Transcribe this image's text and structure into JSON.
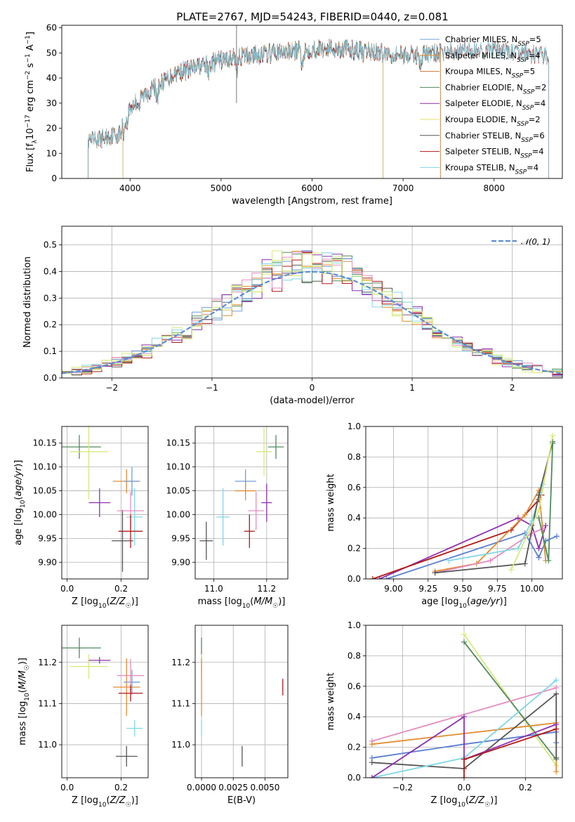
{
  "figure": {
    "title": "PLATE=2767, MJD=54243, FIBERID=0440, z=0.081"
  },
  "model_colors": [
    "#6f9fd8",
    "#e38c2e",
    "#c97a37",
    "#4f8a5f",
    "#8e2fb0",
    "#e6e06a",
    "#555555",
    "#b01818",
    "#7fd6e6"
  ],
  "chart_data": [
    {
      "id": "spectrum",
      "type": "line",
      "title": "PLATE=2767, MJD=54243, FIBERID=0440, z=0.081",
      "xlabel": "wavelength [Angstrom, rest frame]",
      "ylabel": "Flux [f_λ 10^-17 erg cm^-2 s^-1 A^-1]",
      "xlim": [
        3250,
        8750
      ],
      "ylim": [
        0,
        61
      ],
      "xticks": [
        4000,
        5000,
        6000,
        7000,
        8000
      ],
      "yticks": [
        0,
        10,
        20,
        30,
        40,
        50,
        60
      ],
      "grid": false,
      "legend": "upper-right",
      "continuum": {
        "x": [
          3520,
          3700,
          3900,
          3930,
          4000,
          4100,
          4300,
          4500,
          4700,
          5000,
          5300,
          5600,
          5900,
          6200,
          6500,
          6800,
          7100,
          7400,
          7700,
          8000,
          8300,
          8500
        ],
        "y": [
          14,
          16,
          18,
          24,
          28,
          32,
          37,
          42,
          44,
          47,
          49,
          50,
          51,
          52,
          51,
          50,
          49,
          50,
          51,
          51,
          50,
          49
        ]
      },
      "series": [
        {
          "name": "Chabrier MILES",
          "nssp": "5",
          "x_range": [
            3540,
            7410
          ]
        },
        {
          "name": "Salpeter MILES",
          "nssp": "4",
          "x_range": [
            3540,
            7410
          ]
        },
        {
          "name": "Kroupa MILES",
          "nssp": "5",
          "x_range": [
            3540,
            7410
          ]
        },
        {
          "name": "Chabrier ELODIE",
          "nssp": "2",
          "x_range": [
            3920,
            6780
          ]
        },
        {
          "name": "Salpeter ELODIE",
          "nssp": "4",
          "x_range": [
            3920,
            6780
          ]
        },
        {
          "name": "Kroupa ELODIE",
          "nssp": "2",
          "x_range": [
            3920,
            6780
          ]
        },
        {
          "name": "Chabrier STELIB",
          "nssp": "6",
          "x_range": [
            3540,
            8600
          ]
        },
        {
          "name": "Salpeter STELIB",
          "nssp": "4",
          "x_range": [
            3540,
            8600
          ]
        },
        {
          "name": "Kroupa STELIB",
          "nssp": "4",
          "x_range": [
            3540,
            8600
          ]
        }
      ]
    },
    {
      "id": "residuals",
      "type": "histogram",
      "xlabel": "(data-model)/error",
      "ylabel": "Normed distribution",
      "xlim": [
        -2.5,
        2.5
      ],
      "ylim": [
        0,
        0.57
      ],
      "xticks": [
        -2,
        -1,
        0,
        1,
        2
      ],
      "yticks": [
        0.0,
        0.1,
        0.2,
        0.3,
        0.4,
        0.5
      ],
      "grid": true,
      "legend": "upper-right",
      "reference": {
        "name": "𝒩(0, 1)",
        "color": "#5a8ed6"
      },
      "bins": {
        "start": -2.5,
        "width": 0.1,
        "count": 50
      }
    },
    {
      "id": "age-vs-z",
      "type": "errorbar",
      "xlabel": "Z [log10(Z/Z☉)]",
      "ylabel": "age [log10(age/yr)]",
      "xlim": [
        -0.02,
        0.3
      ],
      "ylim": [
        9.865,
        10.185
      ],
      "xticks": [
        0.0,
        0.2
      ],
      "yticks": [
        9.9,
        9.95,
        10.0,
        10.05,
        10.1,
        10.15
      ],
      "grid": true,
      "points": [
        {
          "x": 0.045,
          "y": 10.142,
          "xerr": 0.08,
          "yerr": 0.025,
          "color": "#4f8a5f"
        },
        {
          "x": 0.08,
          "y": 10.132,
          "xerr": 0.07,
          "yerr": 0.1,
          "color": "#d9e87a"
        },
        {
          "x": 0.12,
          "y": 10.025,
          "xerr": 0.04,
          "yerr": 0.03,
          "color": "#8e2fb0"
        },
        {
          "x": 0.205,
          "y": 9.945,
          "xerr": 0.04,
          "yerr": 0.065,
          "color": "#555555"
        },
        {
          "x": 0.22,
          "y": 10.07,
          "xerr": 0.05,
          "yerr": 0.025,
          "color": "#e38c2e"
        },
        {
          "x": 0.24,
          "y": 10.07,
          "xerr": 0.03,
          "yerr": 0.03,
          "color": "#6f9fd8"
        },
        {
          "x": 0.25,
          "y": 9.995,
          "xerr": 0.03,
          "yerr": 0.06,
          "color": "#7fd6e6"
        },
        {
          "x": 0.235,
          "y": 10.008,
          "xerr": 0.05,
          "yerr": 0.04,
          "color": "#e58cc0"
        },
        {
          "x": 0.235,
          "y": 9.965,
          "xerr": 0.045,
          "yerr": 0.035,
          "color": "#b01818"
        }
      ]
    },
    {
      "id": "age-vs-mass",
      "type": "errorbar",
      "xlabel": "mass [log10(M/M☉)]",
      "ylabel": "",
      "xlim": [
        10.93,
        11.28
      ],
      "ylim": [
        9.865,
        10.185
      ],
      "xticks": [
        11.0,
        11.2
      ],
      "yticks": [
        9.9,
        9.95,
        10.0,
        10.05,
        10.1,
        10.15
      ],
      "grid": true,
      "points": [
        {
          "x": 10.972,
          "y": 9.945,
          "xerr": 0.025,
          "yerr": 0.04,
          "color": "#555555"
        },
        {
          "x": 11.035,
          "y": 9.995,
          "xerr": 0.025,
          "yerr": 0.06,
          "color": "#7fd6e6"
        },
        {
          "x": 11.12,
          "y": 10.07,
          "xerr": 0.04,
          "yerr": 0.025,
          "color": "#6f9fd8"
        },
        {
          "x": 11.12,
          "y": 10.05,
          "xerr": 0.04,
          "yerr": 0.02,
          "color": "#e38c2e"
        },
        {
          "x": 11.16,
          "y": 10.008,
          "xerr": 0.03,
          "yerr": 0.04,
          "color": "#e58cc0"
        },
        {
          "x": 11.135,
          "y": 9.965,
          "xerr": 0.02,
          "yerr": 0.035,
          "color": "#b01818"
        },
        {
          "x": 11.19,
          "y": 10.132,
          "xerr": 0.03,
          "yerr": 0.05,
          "color": "#d9e87a"
        },
        {
          "x": 11.2,
          "y": 10.025,
          "xerr": 0.02,
          "yerr": 0.04,
          "color": "#8e2fb0"
        },
        {
          "x": 11.235,
          "y": 10.142,
          "xerr": 0.03,
          "yerr": 0.025,
          "color": "#4f8a5f"
        }
      ]
    },
    {
      "id": "weight-vs-age",
      "type": "line",
      "xlabel": "age [log10(age/yr)]",
      "ylabel": "mass weight",
      "xlim": [
        8.8,
        10.22
      ],
      "ylim": [
        0,
        1.0
      ],
      "xticks": [
        9.0,
        9.25,
        9.5,
        9.75,
        10.0
      ],
      "yticks": [
        0.0,
        0.2,
        0.4,
        0.6,
        0.8,
        1.0
      ],
      "grid": true,
      "series": [
        {
          "color": "#8e2fb0",
          "x": [
            8.9,
            9.9,
            10.0,
            10.05,
            10.1
          ],
          "y": [
            0.0,
            0.4,
            0.35,
            0.2,
            0.35
          ]
        },
        {
          "color": "#5a7fd0",
          "x": [
            8.95,
            9.95,
            10.05,
            10.1,
            10.18
          ],
          "y": [
            0.0,
            0.3,
            0.14,
            0.25,
            0.28
          ]
        },
        {
          "color": "#b01818",
          "x": [
            8.85,
            9.85,
            10.05,
            10.07
          ],
          "y": [
            0.0,
            0.32,
            0.52,
            0.55
          ]
        },
        {
          "color": "#e38c2e",
          "x": [
            9.3,
            9.6,
            9.95,
            10.05,
            10.1
          ],
          "y": [
            0.05,
            0.1,
            0.42,
            0.58,
            0.12
          ]
        },
        {
          "color": "#e58cc0",
          "x": [
            9.3,
            9.7,
            10.0,
            10.08
          ],
          "y": [
            0.04,
            0.12,
            0.3,
            0.33
          ]
        },
        {
          "color": "#7fd6e6",
          "x": [
            9.4,
            9.9,
            10.0,
            10.08
          ],
          "y": [
            0.12,
            0.2,
            0.38,
            0.62
          ]
        },
        {
          "color": "#555555",
          "x": [
            9.3,
            9.95,
            10.05,
            10.15
          ],
          "y": [
            0.04,
            0.1,
            0.55,
            0.9
          ]
        },
        {
          "color": "#4f8a5f",
          "x": [
            10.05,
            10.12,
            10.15
          ],
          "y": [
            0.4,
            0.12,
            0.89
          ]
        },
        {
          "color": "#d9e87a",
          "x": [
            9.85,
            10.05,
            10.15
          ],
          "y": [
            0.06,
            0.45,
            0.94
          ]
        }
      ]
    },
    {
      "id": "mass-vs-z",
      "type": "errorbar",
      "xlabel": "Z [log10(Z/Z☉)]",
      "ylabel": "mass [log10(M/M☉)]",
      "xlim": [
        -0.02,
        0.3
      ],
      "ylim": [
        10.92,
        11.29
      ],
      "xticks": [
        0.0,
        0.2
      ],
      "yticks": [
        11.0,
        11.1,
        11.2
      ],
      "grid": true,
      "points": [
        {
          "x": 0.045,
          "y": 11.235,
          "xerr": 0.08,
          "yerr": 0.025,
          "color": "#4f8a5f"
        },
        {
          "x": 0.08,
          "y": 11.19,
          "xerr": 0.07,
          "yerr": 0.03,
          "color": "#d9e87a"
        },
        {
          "x": 0.12,
          "y": 11.205,
          "xerr": 0.04,
          "yerr": 0.008,
          "color": "#8e2fb0"
        },
        {
          "x": 0.22,
          "y": 10.972,
          "xerr": 0.04,
          "yerr": 0.025,
          "color": "#555555"
        },
        {
          "x": 0.22,
          "y": 11.14,
          "xerr": 0.05,
          "yerr": 0.07,
          "color": "#e38c2e"
        },
        {
          "x": 0.24,
          "y": 11.152,
          "xerr": 0.03,
          "yerr": 0.03,
          "color": "#6f9fd8"
        },
        {
          "x": 0.25,
          "y": 11.04,
          "xerr": 0.03,
          "yerr": 0.02,
          "color": "#7fd6e6"
        },
        {
          "x": 0.235,
          "y": 11.168,
          "xerr": 0.05,
          "yerr": 0.04,
          "color": "#e58cc0"
        },
        {
          "x": 0.235,
          "y": 11.125,
          "xerr": 0.045,
          "yerr": 0.02,
          "color": "#b01818"
        }
      ]
    },
    {
      "id": "mass-vs-ebv",
      "type": "errorbar",
      "xlabel": "E(B-V)",
      "ylabel": "",
      "xlim": [
        -0.0005,
        0.0068
      ],
      "ylim": [
        10.92,
        11.29
      ],
      "xticks": [
        0.0,
        0.0025,
        0.005
      ],
      "xtick_labels": [
        "0.0000",
        "0.0025",
        "0.0050"
      ],
      "yticks": [
        11.0,
        11.1,
        11.2
      ],
      "grid": true,
      "points": [
        {
          "x": 0.0,
          "y": 11.235,
          "xerr": 0.0,
          "yerr": 0.025,
          "color": "#4f8a5f"
        },
        {
          "x": 0.0,
          "y": 11.19,
          "xerr": 0.0,
          "yerr": 0.03,
          "color": "#d9e87a"
        },
        {
          "x": 0.0,
          "y": 11.14,
          "xerr": 0.0,
          "yerr": 0.07,
          "color": "#e38c2e"
        },
        {
          "x": 0.0,
          "y": 11.04,
          "xerr": 0.0,
          "yerr": 0.02,
          "color": "#7fd6e6"
        },
        {
          "x": 0.0032,
          "y": 10.972,
          "xerr": 0.0,
          "yerr": 0.025,
          "color": "#555555"
        },
        {
          "x": 0.0064,
          "y": 11.14,
          "xerr": 0.0,
          "yerr": 0.02,
          "color": "#b01818"
        }
      ]
    },
    {
      "id": "weight-vs-z",
      "type": "line",
      "xlabel": "Z [log10(Z/Z☉)]",
      "ylabel": "mass weight",
      "xlim": [
        -0.32,
        0.32
      ],
      "ylim": [
        0,
        1.0
      ],
      "xticks": [
        -0.2,
        0.0,
        0.2
      ],
      "yticks": [
        0.0,
        0.2,
        0.4,
        0.6,
        0.8,
        1.0
      ],
      "grid": true,
      "series": [
        {
          "color": "#d9e87a",
          "x": [
            0.0,
            0.3
          ],
          "y": [
            0.94,
            0.08
          ]
        },
        {
          "color": "#4f8a5f",
          "x": [
            0.0,
            0.3
          ],
          "y": [
            0.89,
            0.12
          ]
        },
        {
          "color": "#e58cc0",
          "x": [
            -0.3,
            0.3
          ],
          "y": [
            0.24,
            0.59
          ]
        },
        {
          "color": "#e38c2e",
          "x": [
            -0.3,
            0.3,
            0.3
          ],
          "y": [
            0.22,
            0.36,
            0.04
          ]
        },
        {
          "color": "#5a7fd0",
          "x": [
            -0.3,
            0.0,
            0.3,
            0.3
          ],
          "y": [
            0.13,
            0.22,
            0.3,
            0.23
          ]
        },
        {
          "color": "#555555",
          "x": [
            -0.3,
            0.0,
            0.3,
            0.3
          ],
          "y": [
            0.1,
            0.06,
            0.55,
            0.13
          ]
        },
        {
          "color": "#7fd6e6",
          "x": [
            -0.3,
            0.0,
            0.3
          ],
          "y": [
            0.0,
            0.13,
            0.64
          ]
        },
        {
          "color": "#8e2fb0",
          "x": [
            -0.3,
            0.0,
            0.0,
            0.3
          ],
          "y": [
            0.0,
            0.4,
            0.12,
            0.35
          ]
        },
        {
          "color": "#b01818",
          "x": [
            0.0,
            0.0,
            0.3
          ],
          "y": [
            0.0,
            0.12,
            0.32
          ]
        }
      ]
    }
  ]
}
